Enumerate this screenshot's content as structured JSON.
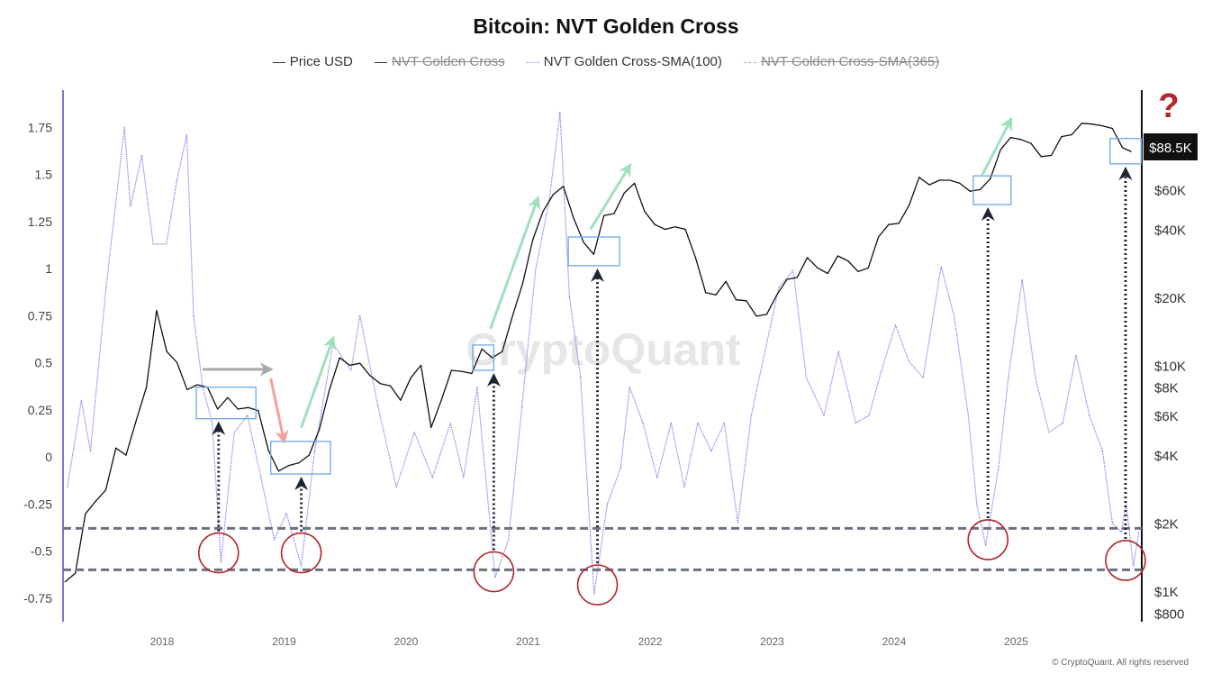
{
  "chart_data": {
    "type": "line",
    "title": "Bitcoin: NVT Golden Cross",
    "legend": [
      {
        "label": "Price USD",
        "active": true,
        "style": "solid",
        "color": "#222222"
      },
      {
        "label": "NVT Golden Cross",
        "active": false,
        "style": "solid",
        "color": "#222222"
      },
      {
        "label": "NVT Golden Cross-SMA(100)",
        "active": true,
        "style": "dotted",
        "color": "#8c88e8"
      },
      {
        "label": "NVT Golden Cross-SMA(365)",
        "active": false,
        "style": "dashed",
        "color": "#999999"
      }
    ],
    "legend_position": "top",
    "x_ticks": [
      "2018",
      "2019",
      "2020",
      "2021",
      "2022",
      "2023",
      "2024",
      "2025"
    ],
    "y_left": {
      "ticks": [
        "1.75",
        "1.5",
        "1.25",
        "1",
        "0.75",
        "0.5",
        "0.25",
        "0",
        "-0.25",
        "-0.5",
        "-0.75"
      ],
      "tick_values": [
        1.75,
        1.5,
        1.25,
        1,
        0.75,
        0.5,
        0.25,
        0,
        -0.25,
        -0.5,
        -0.75
      ]
    },
    "y_right": {
      "scale": "log",
      "ticks": [
        "$800",
        "$1K",
        "$2K",
        "$4K",
        "$6K",
        "$8K",
        "$10K",
        "$20K",
        "$40K",
        "$60K"
      ],
      "tick_values": [
        800,
        1000,
        2000,
        4000,
        6000,
        8000,
        10000,
        20000,
        40000,
        60000
      ]
    },
    "grid": false,
    "series": [
      {
        "name": "Price USD",
        "axis": "right",
        "points": [
          [
            "2017-03-15",
            1100
          ],
          [
            "2017-04-15",
            1200
          ],
          [
            "2017-05-15",
            2200
          ],
          [
            "2017-06-15",
            2500
          ],
          [
            "2017-07-15",
            2800
          ],
          [
            "2017-08-15",
            4300
          ],
          [
            "2017-09-15",
            4000
          ],
          [
            "2017-10-15",
            5700
          ],
          [
            "2017-11-15",
            8000
          ],
          [
            "2017-12-15",
            17500
          ],
          [
            "2018-01-15",
            11500
          ],
          [
            "2018-02-15",
            10300
          ],
          [
            "2018-03-15",
            7800
          ],
          [
            "2018-04-15",
            8200
          ],
          [
            "2018-05-15",
            8000
          ],
          [
            "2018-06-15",
            6400
          ],
          [
            "2018-07-15",
            7200
          ],
          [
            "2018-08-15",
            6400
          ],
          [
            "2018-09-15",
            6500
          ],
          [
            "2018-10-15",
            6300
          ],
          [
            "2018-11-15",
            4200
          ],
          [
            "2018-12-15",
            3400
          ],
          [
            "2019-01-15",
            3600
          ],
          [
            "2019-02-15",
            3700
          ],
          [
            "2019-03-15",
            4000
          ],
          [
            "2019-04-15",
            5200
          ],
          [
            "2019-05-15",
            7800
          ],
          [
            "2019-06-15",
            10800
          ],
          [
            "2019-07-15",
            10000
          ],
          [
            "2019-08-15",
            10200
          ],
          [
            "2019-09-15",
            9000
          ],
          [
            "2019-10-15",
            8300
          ],
          [
            "2019-11-15",
            8100
          ],
          [
            "2019-12-15",
            7000
          ],
          [
            "2020-01-15",
            8800
          ],
          [
            "2020-02-15",
            10000
          ],
          [
            "2020-03-15",
            5300
          ],
          [
            "2020-04-15",
            7000
          ],
          [
            "2020-05-15",
            9500
          ],
          [
            "2020-06-15",
            9400
          ],
          [
            "2020-07-15",
            9200
          ],
          [
            "2020-08-15",
            11800
          ],
          [
            "2020-09-15",
            10800
          ],
          [
            "2020-10-15",
            11500
          ],
          [
            "2020-11-15",
            16500
          ],
          [
            "2020-12-15",
            23000
          ],
          [
            "2021-01-15",
            36000
          ],
          [
            "2021-02-15",
            48000
          ],
          [
            "2021-03-15",
            57000
          ],
          [
            "2021-04-15",
            62000
          ],
          [
            "2021-05-15",
            45000
          ],
          [
            "2021-06-15",
            35000
          ],
          [
            "2021-07-15",
            31000
          ],
          [
            "2021-08-15",
            46000
          ],
          [
            "2021-09-15",
            47000
          ],
          [
            "2021-10-15",
            58000
          ],
          [
            "2021-11-15",
            64000
          ],
          [
            "2021-12-15",
            48000
          ],
          [
            "2022-01-15",
            42000
          ],
          [
            "2022-02-15",
            40000
          ],
          [
            "2022-03-15",
            41000
          ],
          [
            "2022-04-15",
            40000
          ],
          [
            "2022-05-15",
            30000
          ],
          [
            "2022-06-15",
            21000
          ],
          [
            "2022-07-15",
            20500
          ],
          [
            "2022-08-15",
            23500
          ],
          [
            "2022-09-15",
            19500
          ],
          [
            "2022-10-15",
            19300
          ],
          [
            "2022-11-15",
            16500
          ],
          [
            "2022-12-15",
            16800
          ],
          [
            "2023-01-15",
            20500
          ],
          [
            "2023-02-15",
            24000
          ],
          [
            "2023-03-15",
            24500
          ],
          [
            "2023-04-15",
            30000
          ],
          [
            "2023-05-15",
            27000
          ],
          [
            "2023-06-15",
            25500
          ],
          [
            "2023-07-15",
            30500
          ],
          [
            "2023-08-15",
            29000
          ],
          [
            "2023-09-15",
            26000
          ],
          [
            "2023-10-15",
            27000
          ],
          [
            "2023-11-15",
            37000
          ],
          [
            "2023-12-15",
            42000
          ],
          [
            "2024-01-15",
            42500
          ],
          [
            "2024-02-15",
            51000
          ],
          [
            "2024-03-15",
            68000
          ],
          [
            "2024-04-15",
            63000
          ],
          [
            "2024-05-15",
            66000
          ],
          [
            "2024-06-15",
            66000
          ],
          [
            "2024-07-15",
            64000
          ],
          [
            "2024-08-15",
            59000
          ],
          [
            "2024-09-15",
            60000
          ],
          [
            "2024-10-15",
            67000
          ],
          [
            "2024-11-15",
            90000
          ],
          [
            "2024-12-15",
            102000
          ],
          [
            "2025-01-15",
            100000
          ],
          [
            "2025-02-15",
            96000
          ],
          [
            "2025-03-15",
            84000
          ],
          [
            "2025-04-15",
            85000
          ],
          [
            "2025-05-15",
            103000
          ],
          [
            "2025-06-15",
            105000
          ],
          [
            "2025-07-15",
            118000
          ],
          [
            "2025-08-15",
            117000
          ],
          [
            "2025-09-15",
            115000
          ],
          [
            "2025-10-15",
            112000
          ],
          [
            "2025-11-15",
            92000
          ],
          [
            "2025-12-10",
            88500
          ]
        ]
      },
      {
        "name": "NVT Golden Cross-SMA(100)",
        "axis": "left",
        "points": [
          [
            "2017-03-22",
            -0.16
          ],
          [
            "2017-05-03",
            0.3
          ],
          [
            "2017-05-30",
            0.03
          ],
          [
            "2017-07-16",
            0.9
          ],
          [
            "2017-09-10",
            1.75
          ],
          [
            "2017-09-28",
            1.33
          ],
          [
            "2017-11-01",
            1.6
          ],
          [
            "2017-12-05",
            1.13
          ],
          [
            "2018-01-14",
            1.13
          ],
          [
            "2018-02-15",
            1.47
          ],
          [
            "2018-03-14",
            1.71
          ],
          [
            "2018-04-04",
            0.75
          ],
          [
            "2018-05-01",
            0.37
          ],
          [
            "2018-05-29",
            0.18
          ],
          [
            "2018-06-25",
            -0.56
          ],
          [
            "2018-08-04",
            0.13
          ],
          [
            "2018-09-13",
            0.22
          ],
          [
            "2018-10-23",
            -0.11
          ],
          [
            "2018-12-02",
            -0.44
          ],
          [
            "2019-01-08",
            -0.3
          ],
          [
            "2019-02-22",
            -0.58
          ],
          [
            "2019-04-01",
            0.03
          ],
          [
            "2019-05-26",
            0.6
          ],
          [
            "2019-07-19",
            0.46
          ],
          [
            "2019-08-15",
            0.75
          ],
          [
            "2019-10-08",
            0.27
          ],
          [
            "2019-12-02",
            -0.16
          ],
          [
            "2020-01-26",
            0.13
          ],
          [
            "2020-03-19",
            -0.11
          ],
          [
            "2020-05-12",
            0.18
          ],
          [
            "2020-06-21",
            -0.11
          ],
          [
            "2020-08-01",
            0.37
          ],
          [
            "2020-09-24",
            -0.64
          ],
          [
            "2020-11-03",
            -0.44
          ],
          [
            "2020-12-13",
            0.27
          ],
          [
            "2021-01-23",
            0.99
          ],
          [
            "2021-03-04",
            1.37
          ],
          [
            "2021-04-05",
            1.83
          ],
          [
            "2021-05-03",
            0.85
          ],
          [
            "2021-06-06",
            0.42
          ],
          [
            "2021-07-16",
            -0.73
          ],
          [
            "2021-08-25",
            -0.25
          ],
          [
            "2021-10-04",
            -0.06
          ],
          [
            "2021-10-31",
            0.37
          ],
          [
            "2021-12-10",
            0.18
          ],
          [
            "2022-01-22",
            -0.11
          ],
          [
            "2022-03-03",
            0.18
          ],
          [
            "2022-04-12",
            -0.16
          ],
          [
            "2022-05-22",
            0.18
          ],
          [
            "2022-07-01",
            0.03
          ],
          [
            "2022-08-10",
            0.18
          ],
          [
            "2022-09-20",
            -0.35
          ],
          [
            "2022-10-30",
            0.22
          ],
          [
            "2022-12-10",
            0.56
          ],
          [
            "2023-01-21",
            0.9
          ],
          [
            "2023-03-03",
            0.99
          ],
          [
            "2023-04-12",
            0.42
          ],
          [
            "2023-06-04",
            0.22
          ],
          [
            "2023-07-17",
            0.56
          ],
          [
            "2023-09-08",
            0.18
          ],
          [
            "2023-10-17",
            0.22
          ],
          [
            "2023-11-24",
            0.46
          ],
          [
            "2024-01-05",
            0.7
          ],
          [
            "2024-02-14",
            0.51
          ],
          [
            "2024-03-27",
            0.42
          ],
          [
            "2024-05-20",
            1.01
          ],
          [
            "2024-06-28",
            0.75
          ],
          [
            "2024-08-10",
            0.22
          ],
          [
            "2024-09-05",
            -0.25
          ],
          [
            "2024-10-01",
            -0.47
          ],
          [
            "2024-11-09",
            -0.06
          ],
          [
            "2024-12-08",
            0.42
          ],
          [
            "2025-01-19",
            0.94
          ],
          [
            "2025-02-28",
            0.42
          ],
          [
            "2025-04-08",
            0.13
          ],
          [
            "2025-05-19",
            0.18
          ],
          [
            "2025-06-28",
            0.54
          ],
          [
            "2025-08-07",
            0.22
          ],
          [
            "2025-09-16",
            0.03
          ],
          [
            "2025-10-15",
            -0.35
          ],
          [
            "2025-11-11",
            -0.4
          ],
          [
            "2025-11-26",
            -0.25
          ],
          [
            "2025-12-17",
            -0.58
          ],
          [
            "2026-01-03",
            -0.4
          ]
        ]
      }
    ],
    "annotations": {
      "horizontal_dashed_levels": [
        -0.38,
        -0.6
      ],
      "circles": [
        [
          "2018-06-18",
          -0.51
        ],
        [
          "2019-02-22",
          -0.51
        ],
        [
          "2020-09-20",
          -0.61
        ],
        [
          "2021-07-26",
          -0.68
        ],
        [
          "2024-10-08",
          -0.44
        ],
        [
          "2025-11-24",
          -0.55
        ]
      ],
      "price_boxes": [
        {
          "from": "2018-04-12",
          "to": "2018-10-08",
          "high": 8000,
          "low": 5800
        },
        {
          "from": "2018-11-22",
          "to": "2019-05-18",
          "high": 4600,
          "low": 3300
        },
        {
          "from": "2020-07-18",
          "to": "2020-09-20",
          "high": 12300,
          "low": 9500
        },
        {
          "from": "2021-04-30",
          "to": "2021-10-01",
          "high": 37000,
          "low": 27600
        },
        {
          "from": "2024-08-25",
          "to": "2024-12-16",
          "high": 69000,
          "low": 51500
        },
        {
          "from": "2025-10-08",
          "to": "2026-01-10",
          "high": 101000,
          "low": 78000
        }
      ],
      "trend_arrows": [
        {
          "color": "#a9a9a9",
          "from": [
            "2018-05-01",
            9600
          ],
          "to": [
            "2018-11-22",
            9600
          ]
        },
        {
          "color": "#f2a29a",
          "from": [
            "2018-11-22",
            8750
          ],
          "to": [
            "2019-01-01",
            4600
          ]
        },
        {
          "color": "#9fe0bd",
          "from": [
            "2019-02-22",
            5300
          ],
          "to": [
            "2019-05-26",
            13200
          ]
        },
        {
          "color": "#9fe0bd",
          "from": [
            "2020-09-10",
            14500
          ],
          "to": [
            "2021-01-30",
            55000
          ]
        },
        {
          "color": "#9fe0bd",
          "from": [
            "2021-07-05",
            40000
          ],
          "to": [
            "2021-11-02",
            77000
          ]
        },
        {
          "color": "#9fe0bd",
          "from": [
            "2024-09-20",
            69000
          ],
          "to": [
            "2024-12-16",
            123000
          ]
        }
      ],
      "current_price_label": "$88.5K",
      "question_mark": "?",
      "watermark": "CryptoQuant",
      "copyright": "© CryptoQuant. All rights reserved"
    }
  }
}
